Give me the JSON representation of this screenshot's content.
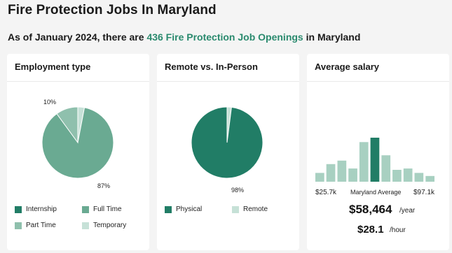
{
  "page": {
    "title": "Fire Protection Jobs In Maryland",
    "subtitle_prefix": "As of January 2024, there are ",
    "subtitle_highlight": "436 Fire Protection Job Openings",
    "subtitle_suffix": " in Maryland"
  },
  "colors": {
    "internship": "#217d66",
    "full_time": "#6aaa92",
    "part_time": "#8fc0ad",
    "temporary": "#c6e1d7",
    "physical": "#217d66",
    "remote": "#c6e1d7",
    "bar_light": "#a8d0c1",
    "bar_dark": "#217d66",
    "highlight_text": "#2a8a6e"
  },
  "chart_data": [
    {
      "type": "pie",
      "title": "Employment type",
      "slices": [
        {
          "name": "Internship",
          "value": 0,
          "color_key": "internship"
        },
        {
          "name": "Full Time",
          "value": 87,
          "color_key": "full_time"
        },
        {
          "name": "Part Time",
          "value": 10,
          "color_key": "part_time"
        },
        {
          "name": "Temporary",
          "value": 3,
          "color_key": "temporary"
        }
      ],
      "labels": {
        "full_time_pct": "87%",
        "part_time_pct": "10%"
      },
      "legend_placement": "bottom"
    },
    {
      "type": "pie",
      "title": "Remote vs. In-Person",
      "slices": [
        {
          "name": "Physical",
          "value": 98,
          "color_key": "physical"
        },
        {
          "name": "Remote",
          "value": 2,
          "color_key": "remote"
        }
      ],
      "labels": {
        "physical_pct": "98%"
      },
      "legend_placement": "bottom"
    },
    {
      "type": "bar",
      "title": "Average salary",
      "values": [
        2,
        4,
        4.8,
        3,
        9,
        10,
        6,
        2.7,
        3,
        2,
        1.3
      ],
      "highlight_index": 5,
      "x_labels": {
        "min": "$25.7k",
        "middle": "Maryland Average",
        "max": "$97.1k"
      },
      "ylim": [
        0,
        10
      ],
      "annual": {
        "value": "$58,464",
        "unit": "/year"
      },
      "hourly": {
        "value": "$28.1",
        "unit": "/hour"
      }
    }
  ]
}
